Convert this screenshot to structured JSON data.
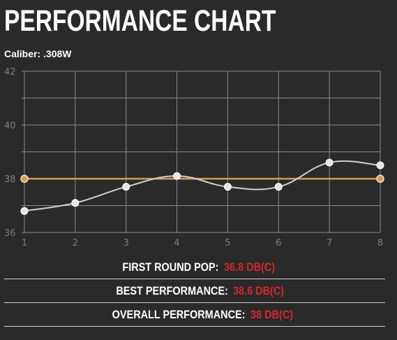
{
  "header": {
    "title": "PERFORMANCE CHART",
    "caliber_label": "Caliber:",
    "caliber_value": ".308W"
  },
  "colors": {
    "background": "#2a2a2a",
    "grid": "#8a8a8a",
    "series_line": "#cfcfcf",
    "reference_line": "#d99a4e",
    "value_text": "#d2262b"
  },
  "chart_data": {
    "type": "line",
    "x": [
      1,
      2,
      3,
      4,
      5,
      6,
      7,
      8
    ],
    "xlim": [
      1,
      8
    ],
    "ylim": [
      36,
      42
    ],
    "yticks": [
      36,
      38,
      40,
      42
    ],
    "grid": true,
    "series": [
      {
        "values": [
          36.8,
          37.1,
          37.7,
          38.1,
          37.7,
          37.7,
          38.6,
          38.5
        ],
        "color": "#cfcfcf",
        "smooth": true
      },
      {
        "values": [
          38,
          38,
          38,
          38,
          38,
          38,
          38,
          38
        ],
        "color": "#d99a4e",
        "markers_at_ends": true
      }
    ]
  },
  "stats": [
    {
      "label": "FIRST ROUND POP:",
      "value": "36.8 DB(C)"
    },
    {
      "label": "BEST PERFORMANCE:",
      "value": "38.6 DB(C)"
    },
    {
      "label": "OVERALL PERFORMANCE:",
      "value": "38 DB(C)"
    }
  ]
}
